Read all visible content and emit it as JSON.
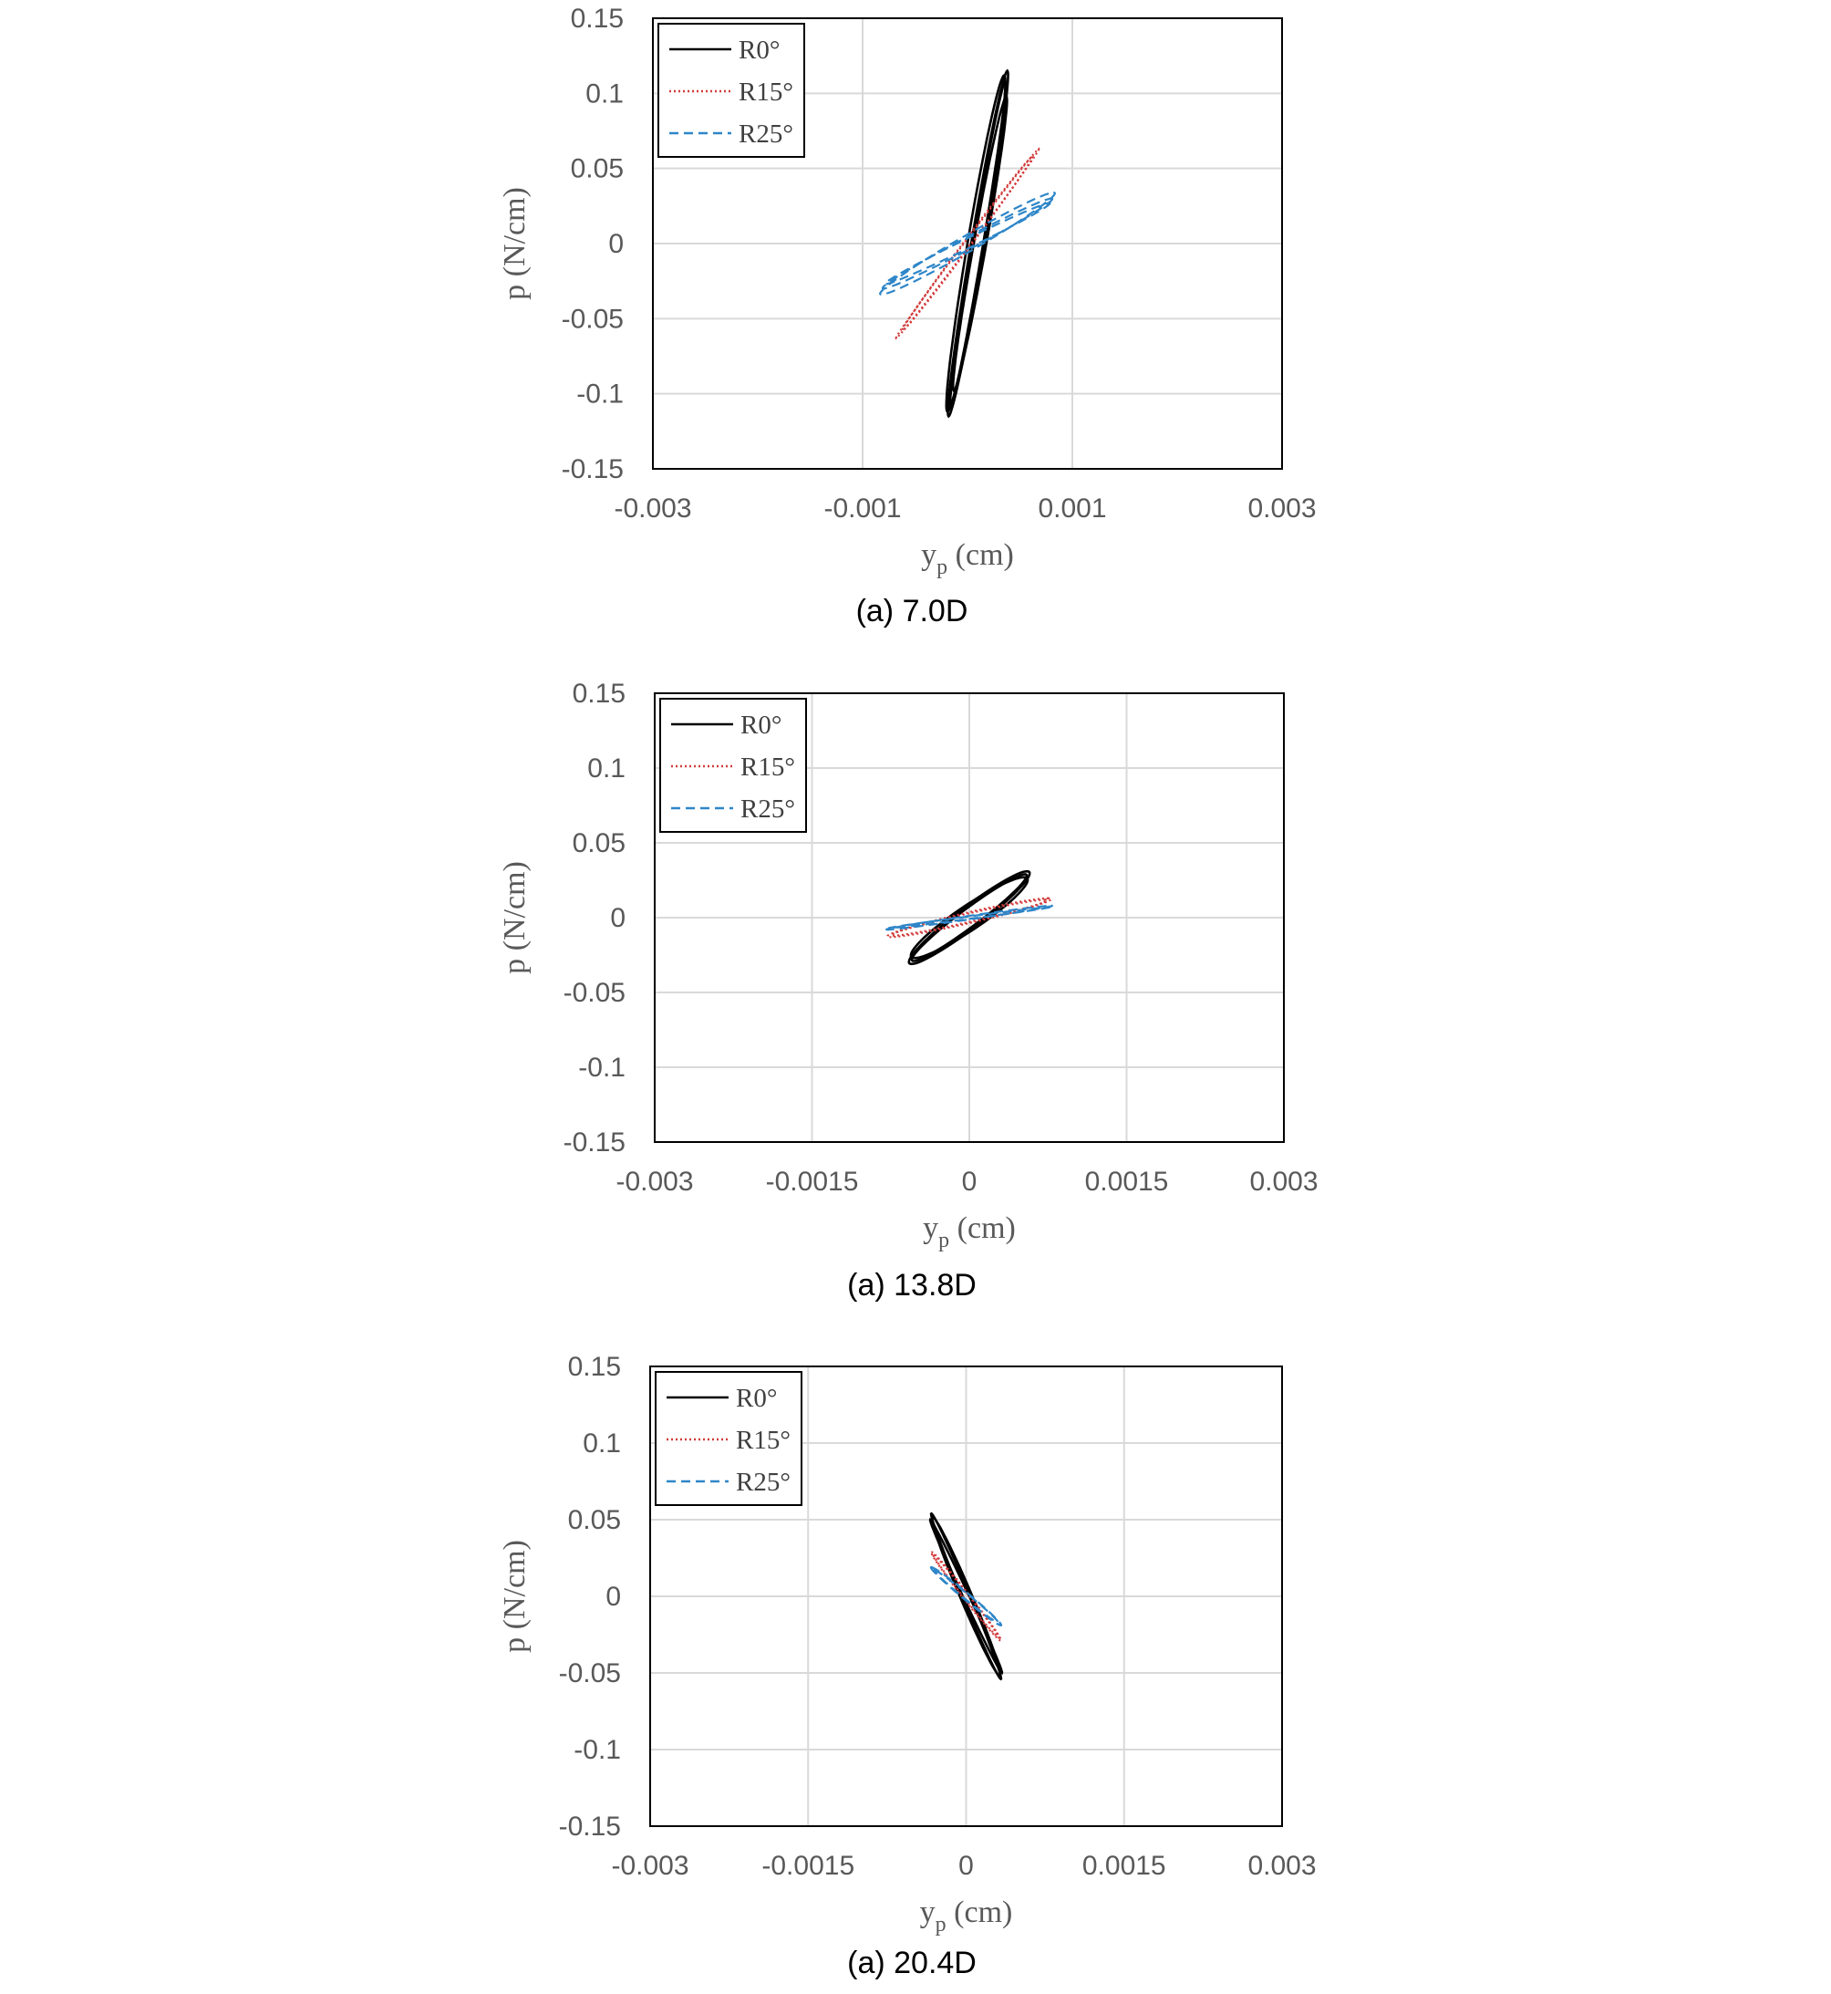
{
  "colors": {
    "R0": "#000000",
    "R15": "#d23a3a",
    "R25": "#2e86c8",
    "grid": "#d9d9d9",
    "axis_text": "#595959"
  },
  "chart_data": [
    {
      "type": "scatter",
      "caption": "(a) 7.0D",
      "xlabel": {
        "main": "y",
        "sub": "p",
        "unit": " (cm)"
      },
      "ylabel": "p (N/cm)",
      "xlim": [
        -0.003,
        0.003
      ],
      "ylim": [
        -0.15,
        0.15
      ],
      "x_ticks": [
        -0.003,
        -0.001,
        0.001,
        0.003
      ],
      "x_tick_labels": [
        "-0.003",
        "-0.001",
        "0.001",
        "0.003"
      ],
      "x_gridlines": [
        -0.001,
        0.001
      ],
      "y_ticks": [
        0.15,
        0.1,
        0.05,
        0,
        -0.05,
        -0.1,
        -0.15
      ],
      "y_tick_labels": [
        "0.15",
        "0.1",
        "0.05",
        "0",
        "-0.05",
        "-0.1",
        "-0.15"
      ],
      "grid": true,
      "legend_position": "top-left",
      "series": [
        {
          "name": "R0°",
          "color": "#000000",
          "dash": "solid",
          "loops": [
            {
              "cx": 0.0001,
              "cy": 0.0,
              "ax": 0.00028,
              "ay": 0.115,
              "b": 6.5e-05
            },
            {
              "cx": 0.0001,
              "cy": 0.0,
              "ax": 0.00026,
              "ay": 0.108,
              "b": 5e-05
            },
            {
              "cx": 8e-05,
              "cy": 0.0,
              "ax": 0.00027,
              "ay": 0.112,
              "b": 8e-05
            },
            {
              "cx": 0.00012,
              "cy": 0.0,
              "ax": 0.00025,
              "ay": 0.098,
              "b": 6e-05
            }
          ]
        },
        {
          "name": "R15°",
          "color": "#d23a3a",
          "dash": "dotted",
          "loops": [
            {
              "cx": 0.0,
              "cy": 0.0,
              "ax": 0.00068,
              "ay": 0.063,
              "b": 3.5e-05
            },
            {
              "cx": 0.0,
              "cy": 0.0,
              "ax": 0.00062,
              "ay": 0.058,
              "b": 4.5e-05
            }
          ]
        },
        {
          "name": "R25°",
          "color": "#2e86c8",
          "dash": "dashed",
          "loops": [
            {
              "cx": 0.0,
              "cy": 0.0,
              "ax": 0.00082,
              "ay": 0.034,
              "b": 0.00015
            },
            {
              "cx": 0.0,
              "cy": 0.0,
              "ax": 0.0008,
              "ay": 0.03,
              "b": 0.00012
            },
            {
              "cx": 0.0,
              "cy": 0.0,
              "ax": 0.00078,
              "ay": 0.027,
              "b": 0.0001
            }
          ]
        }
      ]
    },
    {
      "type": "scatter",
      "caption": "(a) 13.8D",
      "xlabel": {
        "main": "y",
        "sub": "p",
        "unit": " (cm)"
      },
      "ylabel": "p (N/cm)",
      "xlim": [
        -0.003,
        0.003
      ],
      "ylim": [
        -0.15,
        0.15
      ],
      "x_ticks": [
        -0.003,
        -0.0015,
        0,
        0.0015,
        0.003
      ],
      "x_tick_labels": [
        "-0.003",
        "-0.0015",
        "0",
        "0.0015",
        "0.003"
      ],
      "x_gridlines": [
        -0.0015,
        0,
        0.0015
      ],
      "y_ticks": [
        0.15,
        0.1,
        0.05,
        0,
        -0.05,
        -0.1,
        -0.15
      ],
      "y_tick_labels": [
        "0.15",
        "0.1",
        "0.05",
        "0",
        "-0.05",
        "-0.1",
        "-0.15"
      ],
      "grid": true,
      "legend_position": "top-left",
      "series": [
        {
          "name": "R0°",
          "color": "#000000",
          "dash": "solid",
          "loops": [
            {
              "cx": 0.0,
              "cy": 0.0,
              "ax": 0.00055,
              "ay": 0.031,
              "b": 0.00017
            },
            {
              "cx": 0.0,
              "cy": 0.0,
              "ax": 0.00053,
              "ay": 0.029,
              "b": 0.00014
            },
            {
              "cx": 0.0,
              "cy": 0.0,
              "ax": 0.00052,
              "ay": 0.027,
              "b": 0.0002
            }
          ]
        },
        {
          "name": "R15°",
          "color": "#d23a3a",
          "dash": "dotted",
          "loops": [
            {
              "cx": 0.0,
              "cy": 0.0,
              "ax": 0.00075,
              "ay": 0.013,
              "b": 0.00022
            },
            {
              "cx": 0.0,
              "cy": 0.0,
              "ax": 0.00072,
              "ay": 0.012,
              "b": 0.00018
            }
          ]
        },
        {
          "name": "R25°",
          "color": "#2e86c8",
          "dash": "dashed",
          "loops": [
            {
              "cx": 0.0,
              "cy": 0.0,
              "ax": 0.00078,
              "ay": 0.008,
              "b": 0.00012
            },
            {
              "cx": 0.0,
              "cy": 0.0,
              "ax": 0.00076,
              "ay": 0.007,
              "b": 9e-05
            }
          ]
        }
      ]
    },
    {
      "type": "scatter",
      "caption": "(a) 20.4D",
      "xlabel": {
        "main": "y",
        "sub": "p",
        "unit": " (cm)"
      },
      "ylabel": "p (N/cm)",
      "xlim": [
        -0.003,
        0.003
      ],
      "ylim": [
        -0.15,
        0.15
      ],
      "x_ticks": [
        -0.003,
        -0.0015,
        0,
        0.0015,
        0.003
      ],
      "x_tick_labels": [
        "-0.003",
        "-0.0015",
        "0",
        "0.0015",
        "0.003"
      ],
      "x_gridlines": [
        -0.0015,
        0,
        0.0015
      ],
      "y_ticks": [
        0.15,
        0.1,
        0.05,
        0,
        -0.05,
        -0.1,
        -0.15
      ],
      "y_tick_labels": [
        "0.15",
        "0.1",
        "0.05",
        "0",
        "-0.05",
        "-0.1",
        "-0.15"
      ],
      "grid": true,
      "legend_position": "top-left",
      "series": [
        {
          "name": "R0°",
          "color": "#000000",
          "dash": "solid",
          "loops": [
            {
              "cx": 0.0,
              "cy": 0.0,
              "ax": -0.00033,
              "ay": 0.054,
              "b": 4e-05
            },
            {
              "cx": 0.0,
              "cy": 0.0,
              "ax": -0.00032,
              "ay": 0.052,
              "b": 6e-05
            },
            {
              "cx": 0.0,
              "cy": 0.0,
              "ax": -0.00034,
              "ay": 0.05,
              "b": 3e-05
            }
          ]
        },
        {
          "name": "R15°",
          "color": "#d23a3a",
          "dash": "dotted",
          "loops": [
            {
              "cx": 0.0,
              "cy": 0.0,
              "ax": -0.00033,
              "ay": 0.029,
              "b": 4e-05
            },
            {
              "cx": 0.0,
              "cy": 0.0,
              "ax": -0.00031,
              "ay": 0.027,
              "b": 3e-05
            }
          ]
        },
        {
          "name": "R25°",
          "color": "#2e86c8",
          "dash": "dashed",
          "loops": [
            {
              "cx": 0.0,
              "cy": 0.0,
              "ax": -0.00033,
              "ay": 0.019,
              "b": 5e-05
            },
            {
              "cx": 0.0,
              "cy": 0.0,
              "ax": -0.0003,
              "ay": 0.017,
              "b": 4e-05
            }
          ]
        }
      ]
    }
  ]
}
